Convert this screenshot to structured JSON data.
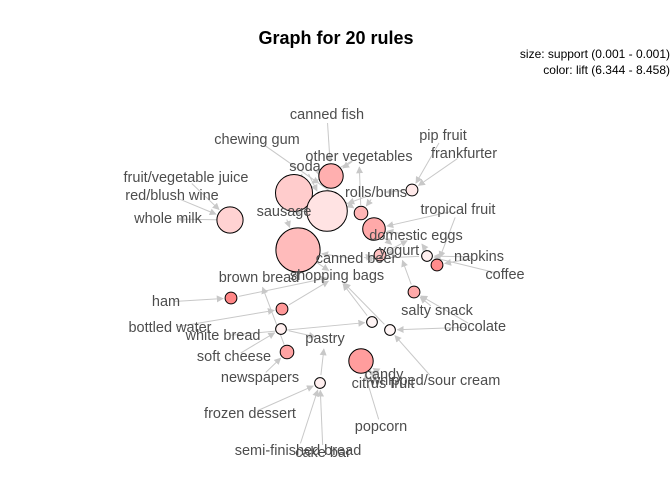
{
  "title": "Graph for 20 rules",
  "legend": {
    "size": "size: support (0.001 - 0.001)",
    "color": "color: lift (6.344 - 8.458)"
  },
  "colors": {
    "edge": "#c8c8c8",
    "label": "#4d4d4d",
    "node_stroke": "#000000"
  },
  "labels": [
    "canned fish",
    "chewing gum",
    "pip fruit",
    "frankfurter",
    "soda",
    "other vegetables",
    "fruit/vegetable juice",
    "red/blush wine",
    "rolls/buns",
    "sausage",
    "tropical fruit",
    "whole milk",
    "domestic eggs",
    "yogurt",
    "canned beer",
    "napkins",
    "brown bread",
    "shopping bags",
    "coffee",
    "ham",
    "salty snack",
    "bottled water",
    "chocolate",
    "white bread",
    "pastry",
    "soft cheese",
    "candy",
    "whipped/sour cream",
    "newspapers",
    "citrus fruit",
    "frozen dessert",
    "popcorn",
    "semi-finished bread",
    "cake bar"
  ],
  "rules": [
    {
      "lift": 7.4,
      "support_rank": 0.95
    },
    {
      "lift": 7.1,
      "support_rank": 0.75
    },
    {
      "lift": 6.7,
      "support_rank": 0.85
    },
    {
      "lift": 7.0,
      "support_rank": 0.45
    },
    {
      "lift": 7.6,
      "support_rank": 0.4
    },
    {
      "lift": 7.7,
      "support_rank": 0.35
    },
    {
      "lift": 7.9,
      "support_rank": 0.4
    },
    {
      "lift": 7.5,
      "support_rank": 0.1
    },
    {
      "lift": 6.6,
      "support_rank": 0.05
    },
    {
      "lift": 8.3,
      "support_rank": 0.05
    },
    {
      "lift": 8.0,
      "support_rank": 0.05
    },
    {
      "lift": 6.4,
      "support_rank": 0.02
    },
    {
      "lift": 8.2,
      "support_rank": 0.05
    },
    {
      "lift": 6.5,
      "support_rank": 0.02
    },
    {
      "lift": 6.4,
      "support_rank": 0.02
    },
    {
      "lift": 7.8,
      "support_rank": 0.1
    },
    {
      "lift": 6.5,
      "support_rank": 0.02
    },
    {
      "lift": 7.7,
      "support_rank": 0.05
    },
    {
      "lift": 6.5,
      "support_rank": 0.02
    },
    {
      "lift": 7.3,
      "support_rank": 0.05
    }
  ]
}
